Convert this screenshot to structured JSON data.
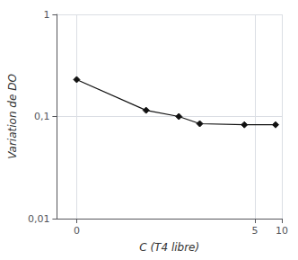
{
  "chart_data": {
    "type": "line",
    "x": [
      0.05,
      0.3,
      0.7,
      1.2,
      3.8,
      8.5
    ],
    "values": [
      0.23,
      0.115,
      0.1,
      0.085,
      0.083,
      0.083
    ],
    "xlabel": "C (T4 libre)",
    "ylabel": "Variation de DO",
    "log": true,
    "xlim": [
      0.03,
      10
    ],
    "ylim": [
      0.01,
      1
    ],
    "xticks": [
      {
        "value": 0.05,
        "label": "0"
      },
      5,
      10
    ],
    "yticks": [
      {
        "value": 0.01,
        "label": "0,01"
      },
      {
        "value": 0.1,
        "label": "0,1"
      },
      1
    ],
    "color": "#111111",
    "marker": "diamond",
    "grid": true
  }
}
